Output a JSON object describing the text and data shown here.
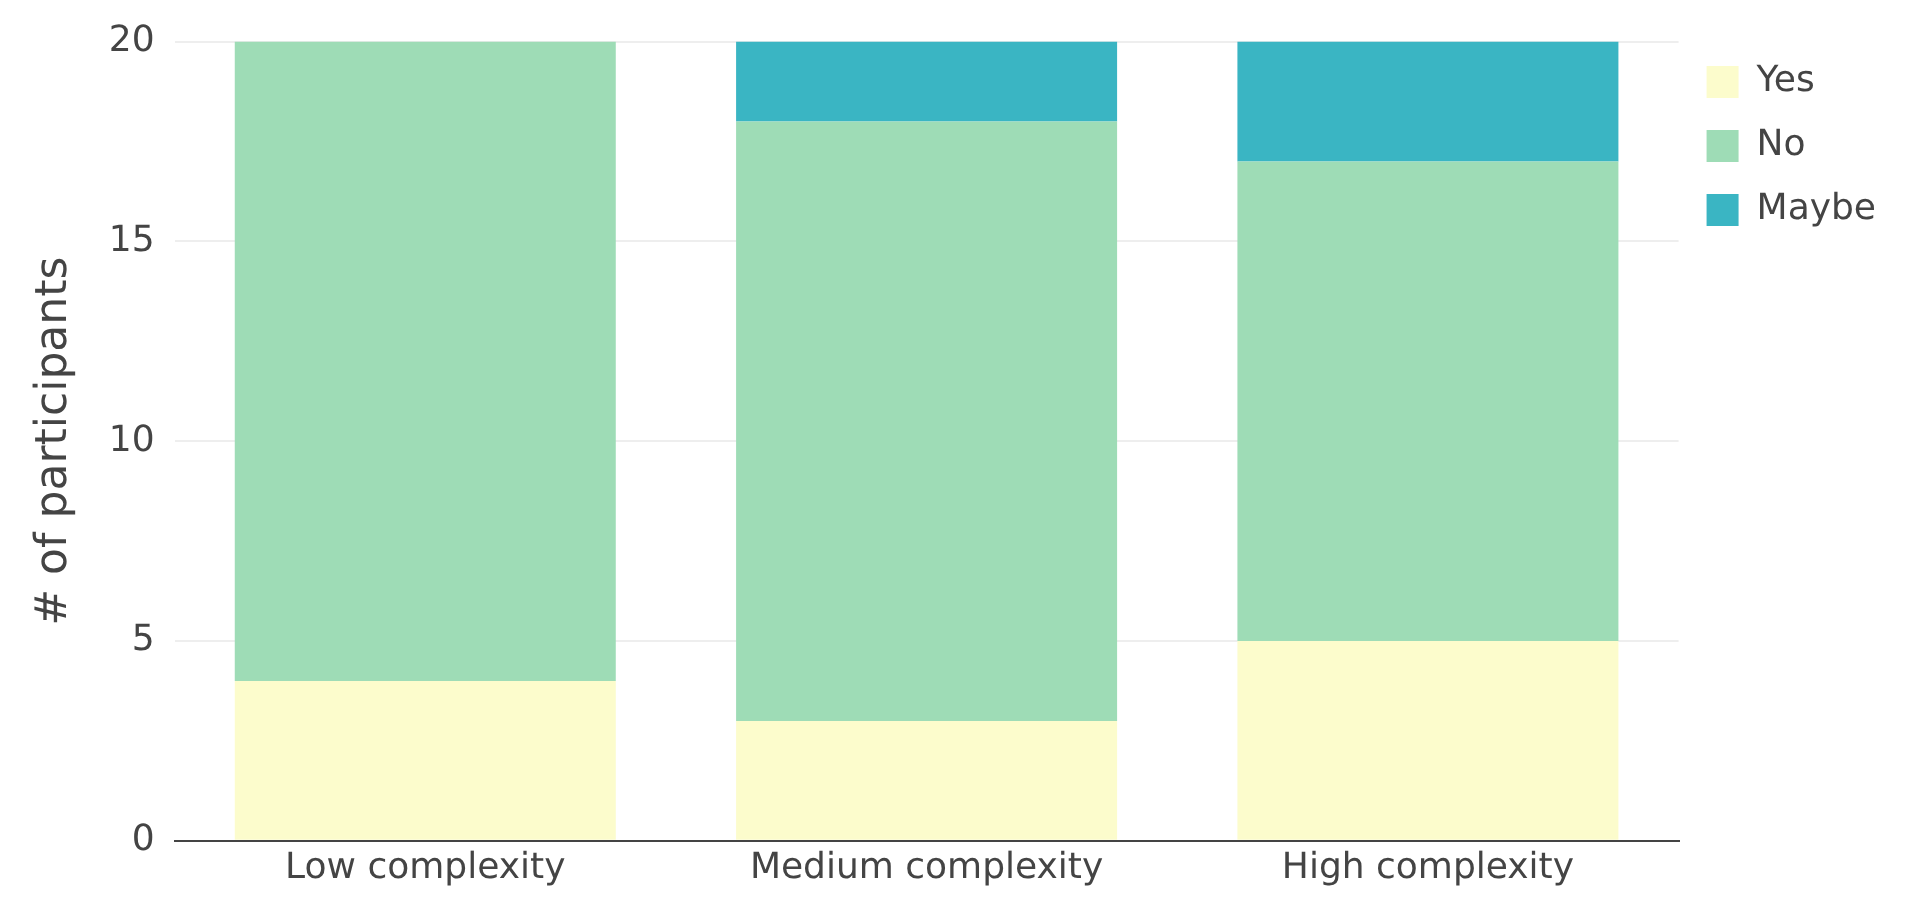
{
  "chart_data": {
    "type": "bar",
    "stacked": true,
    "ylabel": "# of participants",
    "categories": [
      "Low complexity",
      "Medium complexity",
      "High complexity"
    ],
    "series": [
      {
        "name": "Yes",
        "color": "#fcfccc",
        "values": [
          4,
          3,
          5
        ]
      },
      {
        "name": "No",
        "color": "#9edcb6",
        "values": [
          16,
          15,
          12
        ]
      },
      {
        "name": "Maybe",
        "color": "#3ab5c3",
        "values": [
          0,
          2,
          3
        ]
      }
    ],
    "ylim": [
      0,
      20
    ],
    "yticks": [
      0,
      5,
      10,
      15,
      20
    ],
    "grid": "y",
    "legend": "top right"
  }
}
